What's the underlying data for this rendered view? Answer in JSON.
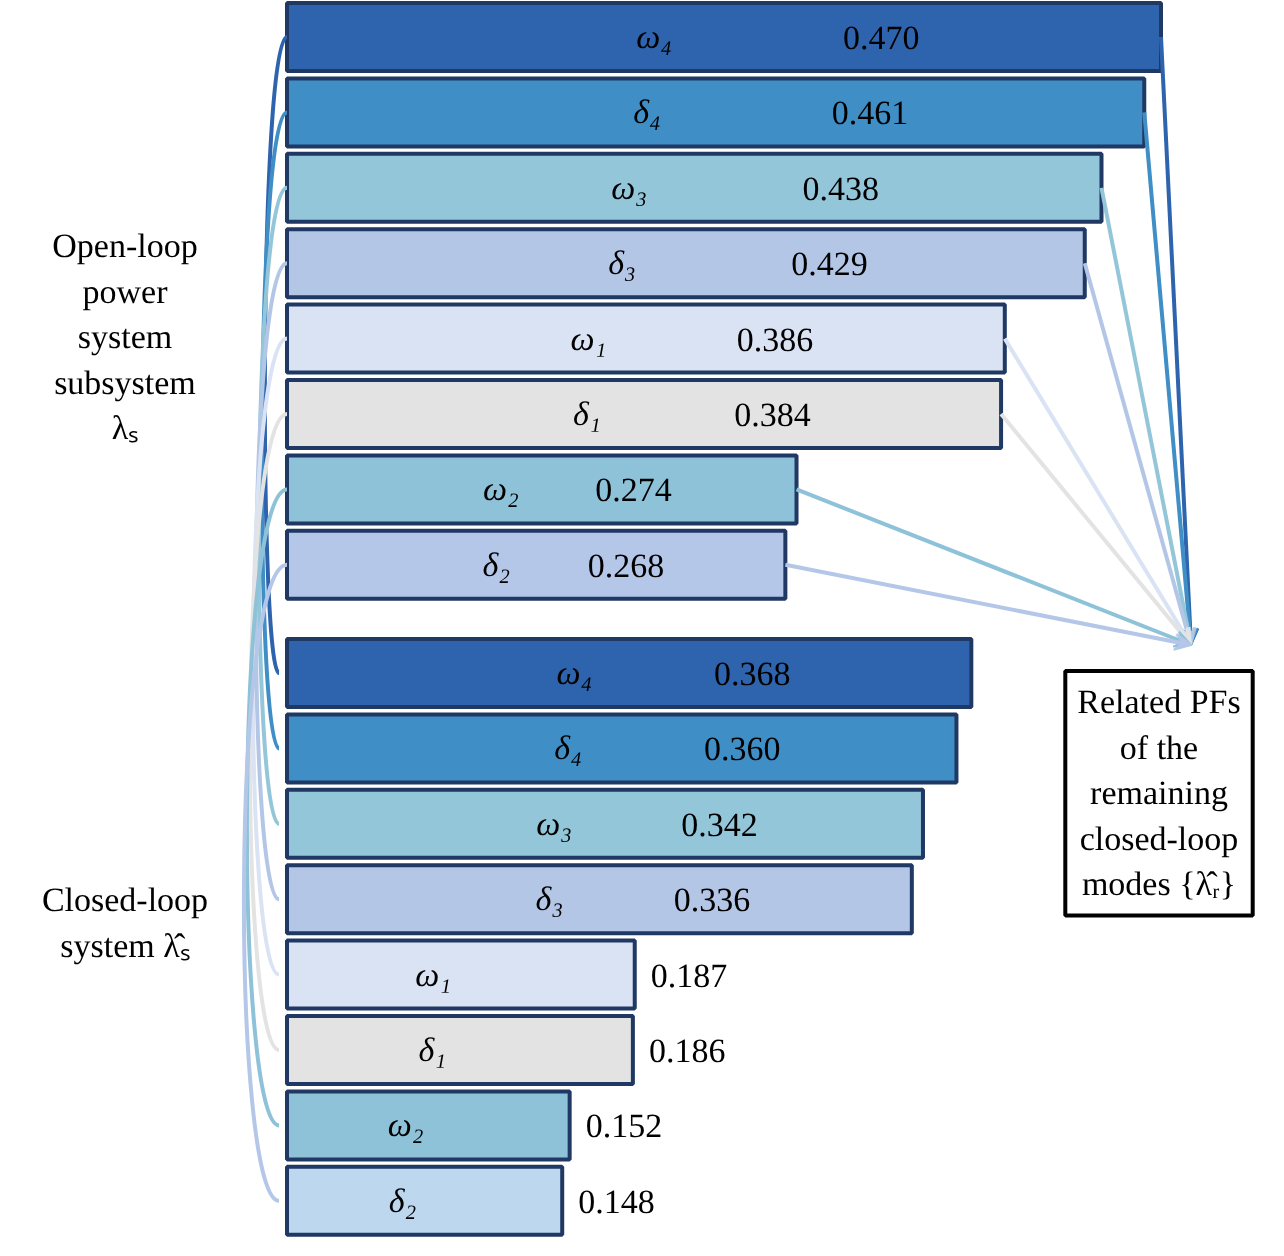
{
  "chart_data": [
    {
      "type": "bar",
      "orientation": "horizontal",
      "categories": [
        "ω₄",
        "δ₄",
        "ω₃",
        "δ₃",
        "ω₁",
        "δ₁",
        "ω₂",
        "δ₂"
      ],
      "values": [
        0.47,
        0.461,
        0.438,
        0.429,
        0.386,
        0.384,
        0.274,
        0.268
      ],
      "value_labels": [
        "0.470",
        "0.461",
        "0.438",
        "0.429",
        "0.386",
        "0.384",
        "0.274",
        "0.268"
      ],
      "colors": [
        "#2e64ad",
        "#3f8ec6",
        "#94c6da",
        "#b3c6e6",
        "#dae3f3",
        "#e3e3e3",
        "#8ec2d8",
        "#b5c7e8"
      ],
      "annotations": [
        "Open-loop power system subsystem λₛ",
        "Related PFs of the remaining closed-loop modes {λ̂ᵣ}"
      ]
    },
    {
      "type": "bar",
      "orientation": "horizontal",
      "categories": [
        "ω₄",
        "δ₄",
        "ω₃",
        "δ₃",
        "ω₁",
        "δ₁",
        "ω₂",
        "δ₂"
      ],
      "values": [
        0.368,
        0.36,
        0.342,
        0.336,
        0.187,
        0.186,
        0.152,
        0.148
      ],
      "value_labels": [
        "0.368",
        "0.360",
        "0.342",
        "0.336",
        "0.187",
        "0.186",
        "0.152",
        "0.148"
      ],
      "colors": [
        "#2e64ad",
        "#3f8ec6",
        "#94c6da",
        "#b3c6e6",
        "#dae3f3",
        "#e3e3e3",
        "#8ec2d8",
        "#bdd7ee"
      ],
      "annotations": [
        "Closed-loop system λ̂ₛ"
      ]
    }
  ]
}
